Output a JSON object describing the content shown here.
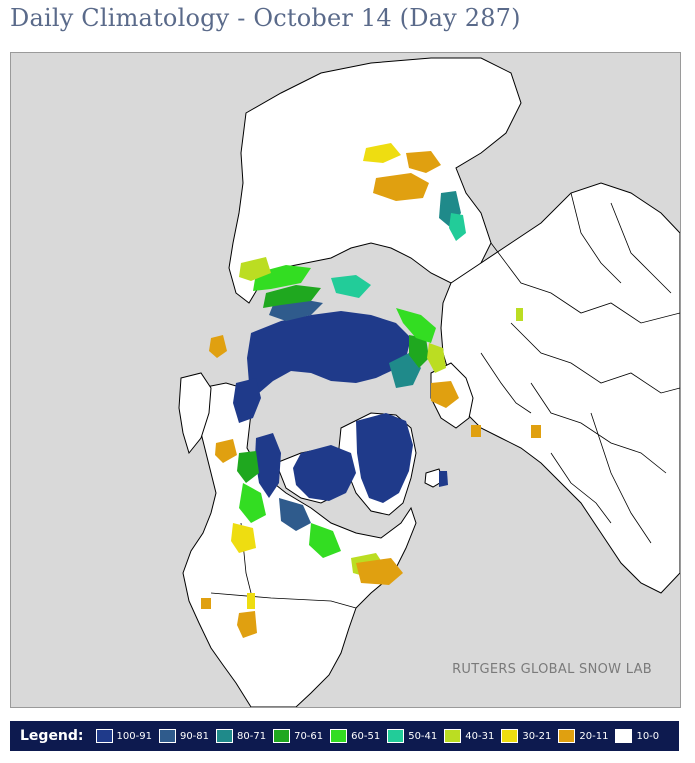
{
  "page": {
    "title": "Daily Climatology - October 14 (Day 287)"
  },
  "map": {
    "credit": "RUTGERS GLOBAL SNOW LAB",
    "colors": {
      "ocean": "#d9d9d9",
      "land": "#ffffff",
      "border": "#000000"
    }
  },
  "legend": {
    "title": "Legend:",
    "items": [
      {
        "label": "100-91",
        "color": "#1f3a8a"
      },
      {
        "label": "90-81",
        "color": "#2f5b8c"
      },
      {
        "label": "80-71",
        "color": "#1f8a8a"
      },
      {
        "label": "70-61",
        "color": "#1fa81f"
      },
      {
        "label": "60-51",
        "color": "#33dd22"
      },
      {
        "label": "50-41",
        "color": "#22cc99"
      },
      {
        "label": "40-31",
        "color": "#bbdd22"
      },
      {
        "label": "30-21",
        "color": "#eedd11"
      },
      {
        "label": "20-11",
        "color": "#e0a010"
      },
      {
        "label": "10-0",
        "color": "#ffffff"
      }
    ]
  }
}
